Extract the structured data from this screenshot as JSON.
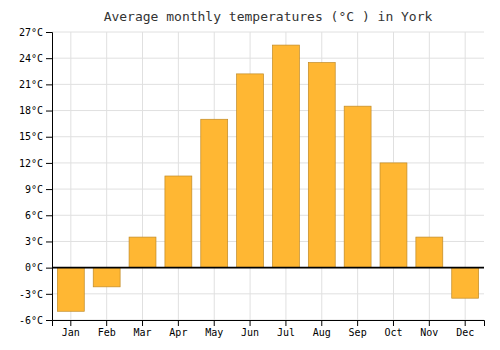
{
  "chart_data": {
    "type": "bar",
    "title": "Average monthly temperatures (°C ) in York",
    "categories": [
      "Jan",
      "Feb",
      "Mar",
      "Apr",
      "May",
      "Jun",
      "Jul",
      "Aug",
      "Sep",
      "Oct",
      "Nov",
      "Dec"
    ],
    "values": [
      -5.0,
      -2.2,
      3.5,
      10.5,
      17.0,
      22.2,
      25.5,
      23.5,
      18.5,
      12.0,
      3.5,
      -3.5
    ],
    "color": "#FFB733",
    "ylim": [
      -6,
      27
    ],
    "yticks": [
      {
        "value": -6,
        "label": "-6°C"
      },
      {
        "value": -3,
        "label": "-3°C"
      },
      {
        "value": 0,
        "label": "0°C"
      },
      {
        "value": 3,
        "label": "3°C"
      },
      {
        "value": 6,
        "label": "6°C"
      },
      {
        "value": 9,
        "label": "9°C"
      },
      {
        "value": 12,
        "label": "12°C"
      },
      {
        "value": 15,
        "label": "15°C"
      },
      {
        "value": 18,
        "label": "18°C"
      },
      {
        "value": 21,
        "label": "21°C"
      },
      {
        "value": 24,
        "label": "24°C"
      },
      {
        "value": 27,
        "label": "27°C"
      }
    ],
    "grid": true
  }
}
